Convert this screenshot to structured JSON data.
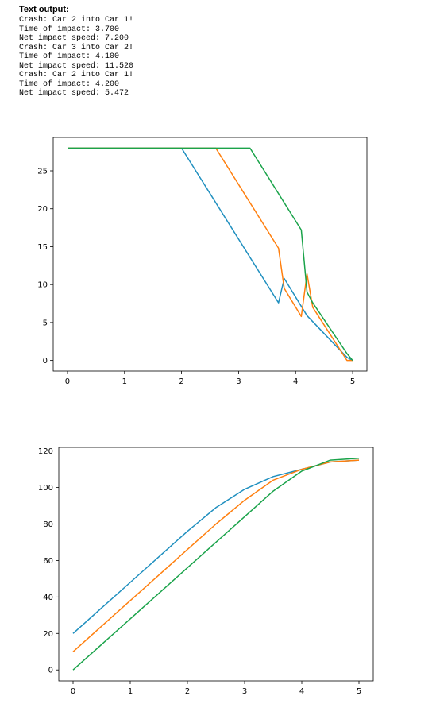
{
  "output": {
    "title": "Text output:",
    "lines": [
      "Crash: Car 2 into Car 1!",
      "Time of impact: 3.700",
      "Net impact speed: 7.200",
      "Crash: Car 3 into Car 2!",
      "Time of impact: 4.100",
      "Net impact speed: 11.520",
      "Crash: Car 2 into Car 1!",
      "Time of impact: 4.200",
      "Net impact speed: 5.472"
    ]
  },
  "colors": {
    "series1": "#1f8fbf",
    "series2": "#ff7f0e",
    "series3": "#1aa34a",
    "axis": "#000000"
  },
  "chart_data": [
    {
      "type": "line",
      "title": "",
      "xlabel": "",
      "ylabel": "",
      "xlim": [
        -0.25,
        5.25
      ],
      "ylim": [
        -1.4,
        29.4
      ],
      "xticks": [
        "0",
        "1",
        "2",
        "3",
        "4",
        "5"
      ],
      "yticks": [
        "0",
        "5",
        "10",
        "15",
        "20",
        "25"
      ],
      "grid": false,
      "series": [
        {
          "color": "#1f8fbf",
          "x": [
            0,
            2.0,
            3.7,
            3.8,
            4.2,
            4.9,
            5.0
          ],
          "y": [
            28,
            28,
            7.6,
            10.8,
            5.9,
            0.4,
            0
          ]
        },
        {
          "color": "#ff7f0e",
          "x": [
            0,
            2.6,
            3.7,
            3.8,
            4.1,
            4.2,
            4.3,
            4.9,
            5.0
          ],
          "y": [
            28,
            28,
            14.8,
            9.5,
            5.8,
            11.4,
            7.0,
            0,
            0
          ]
        },
        {
          "color": "#1aa34a",
          "x": [
            0,
            3.2,
            4.1,
            4.2,
            4.3,
            4.9,
            5.0
          ],
          "y": [
            28,
            28,
            17.2,
            9.0,
            7.6,
            0.9,
            0
          ]
        }
      ]
    },
    {
      "type": "line",
      "title": "",
      "xlabel": "",
      "ylabel": "",
      "xlim": [
        -0.25,
        5.25
      ],
      "ylim": [
        -6,
        122
      ],
      "xticks": [
        "0",
        "1",
        "2",
        "3",
        "4",
        "5"
      ],
      "yticks": [
        "0",
        "20",
        "40",
        "60",
        "80",
        "100",
        "120"
      ],
      "grid": false,
      "series": [
        {
          "color": "#1f8fbf",
          "x": [
            0,
            0.5,
            1,
            1.5,
            2,
            2.5,
            3,
            3.5,
            4,
            4.5,
            5
          ],
          "y": [
            20,
            34,
            48,
            62,
            76,
            89,
            99,
            106,
            110,
            114,
            115
          ]
        },
        {
          "color": "#ff7f0e",
          "x": [
            0,
            0.5,
            1,
            1.5,
            2,
            2.5,
            3,
            3.5,
            4,
            4.5,
            5
          ],
          "y": [
            10,
            24,
            38,
            52,
            66,
            80,
            93,
            104,
            110,
            114,
            115
          ]
        },
        {
          "color": "#1aa34a",
          "x": [
            0,
            0.5,
            1,
            1.5,
            2,
            2.5,
            3,
            3.5,
            4,
            4.5,
            5
          ],
          "y": [
            0,
            14,
            28,
            42,
            56,
            70,
            84,
            98,
            109,
            115,
            116
          ]
        }
      ]
    }
  ]
}
